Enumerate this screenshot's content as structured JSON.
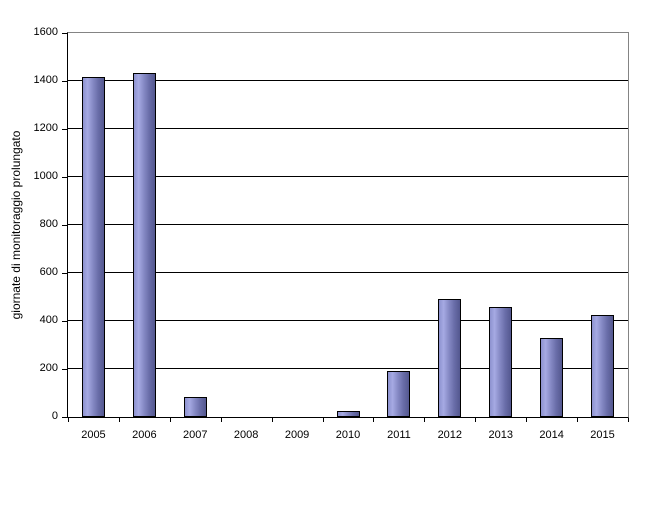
{
  "chart_data": {
    "type": "bar",
    "title": "",
    "ylabel": "giornate di monitoraggio prolungato",
    "xlabel": "",
    "categories": [
      "2005",
      "2006",
      "2007",
      "2008",
      "2009",
      "2010",
      "2011",
      "2012",
      "2013",
      "2014",
      "2015"
    ],
    "values": [
      1415,
      1435,
      85,
      0,
      0,
      25,
      190,
      490,
      458,
      330,
      425
    ],
    "ylim": [
      0,
      1600
    ],
    "ytick_step": 200,
    "yticks": [
      0,
      200,
      400,
      600,
      800,
      1000,
      1200,
      1400,
      1600
    ],
    "grid": "horizontal",
    "legend_position": "none",
    "colors": {
      "bar_gradient": [
        "#8d92cf",
        "#a6aae3",
        "#888cc7",
        "#6a6ea9",
        "#53578f"
      ],
      "bar_gradient_stops": [
        0,
        22,
        45,
        72,
        100
      ],
      "bar_border": "#000000",
      "gridline": "#000000",
      "plot_border": "#848484",
      "axis": "#000000",
      "background": "#ffffff",
      "text": "#000000"
    }
  }
}
